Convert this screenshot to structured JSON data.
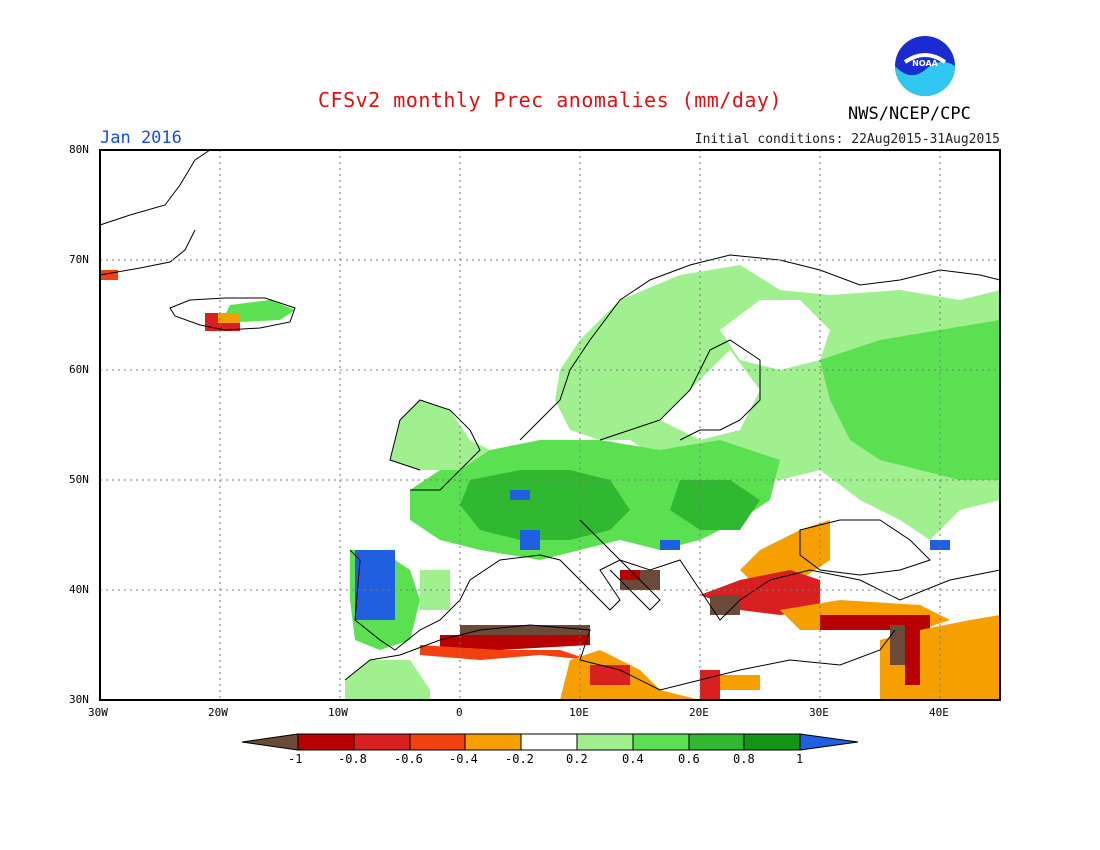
{
  "header": {
    "title": "CFSv2 monthly Prec anomalies (mm/day)",
    "org": "NWS/NCEP/CPC",
    "month": "Jan 2016",
    "initial_conditions": "Initial conditions: 22Aug2015-31Aug2015",
    "logo_text": "NOAA"
  },
  "axes": {
    "lat_labels": [
      "80N",
      "70N",
      "60N",
      "50N",
      "40N",
      "30N"
    ],
    "lon_labels": [
      "30W",
      "20W",
      "10W",
      "0",
      "10E",
      "20E",
      "30E",
      "40E"
    ]
  },
  "colorbar": {
    "labels": [
      "-1",
      "-0.8",
      "-0.6",
      "-0.4",
      "-0.2",
      "0.2",
      "0.4",
      "0.6",
      "0.8",
      "1"
    ],
    "colors": [
      "#6b4a3a",
      "#b80000",
      "#d92020",
      "#f24010",
      "#f5a000",
      "#ffffff",
      "#a0f090",
      "#5ae050",
      "#30b830",
      "#139513",
      "#2060e0"
    ]
  }
}
